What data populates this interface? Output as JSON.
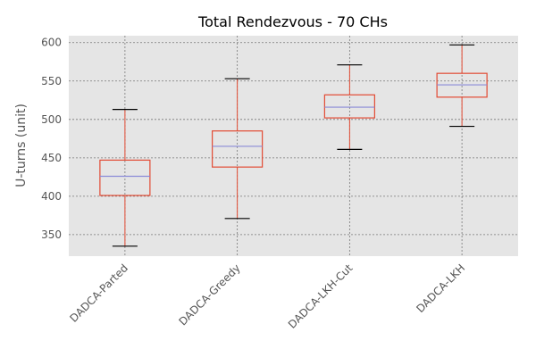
{
  "chart_data": {
    "type": "boxplot",
    "title": "Total Rendezvous - 70 CHs",
    "xlabel": "",
    "ylabel": "U-turns (unit)",
    "ylim": [
      322,
      609
    ],
    "yticks": [
      350,
      400,
      450,
      500,
      550,
      600
    ],
    "grid": true,
    "categories": [
      "DADCA-Parted",
      "DADCA-Greedy",
      "DADCA-LKH-Cut",
      "DADCA-LKH"
    ],
    "boxes": [
      {
        "whisker_low": 335,
        "q1": 401,
        "median": 426,
        "q3": 447,
        "whisker_high": 513
      },
      {
        "whisker_low": 371,
        "q1": 438,
        "median": 465,
        "q3": 485,
        "whisker_high": 553
      },
      {
        "whisker_low": 461,
        "q1": 502,
        "median": 516,
        "q3": 532,
        "whisker_high": 571
      },
      {
        "whisker_low": 491,
        "q1": 529,
        "median": 545,
        "q3": 560,
        "whisker_high": 597
      }
    ],
    "colors": {
      "background": "#e5e5e5",
      "box": "#e24a33",
      "median": "#8a8ad8",
      "cap": "#000000",
      "grid": "#777777"
    }
  }
}
